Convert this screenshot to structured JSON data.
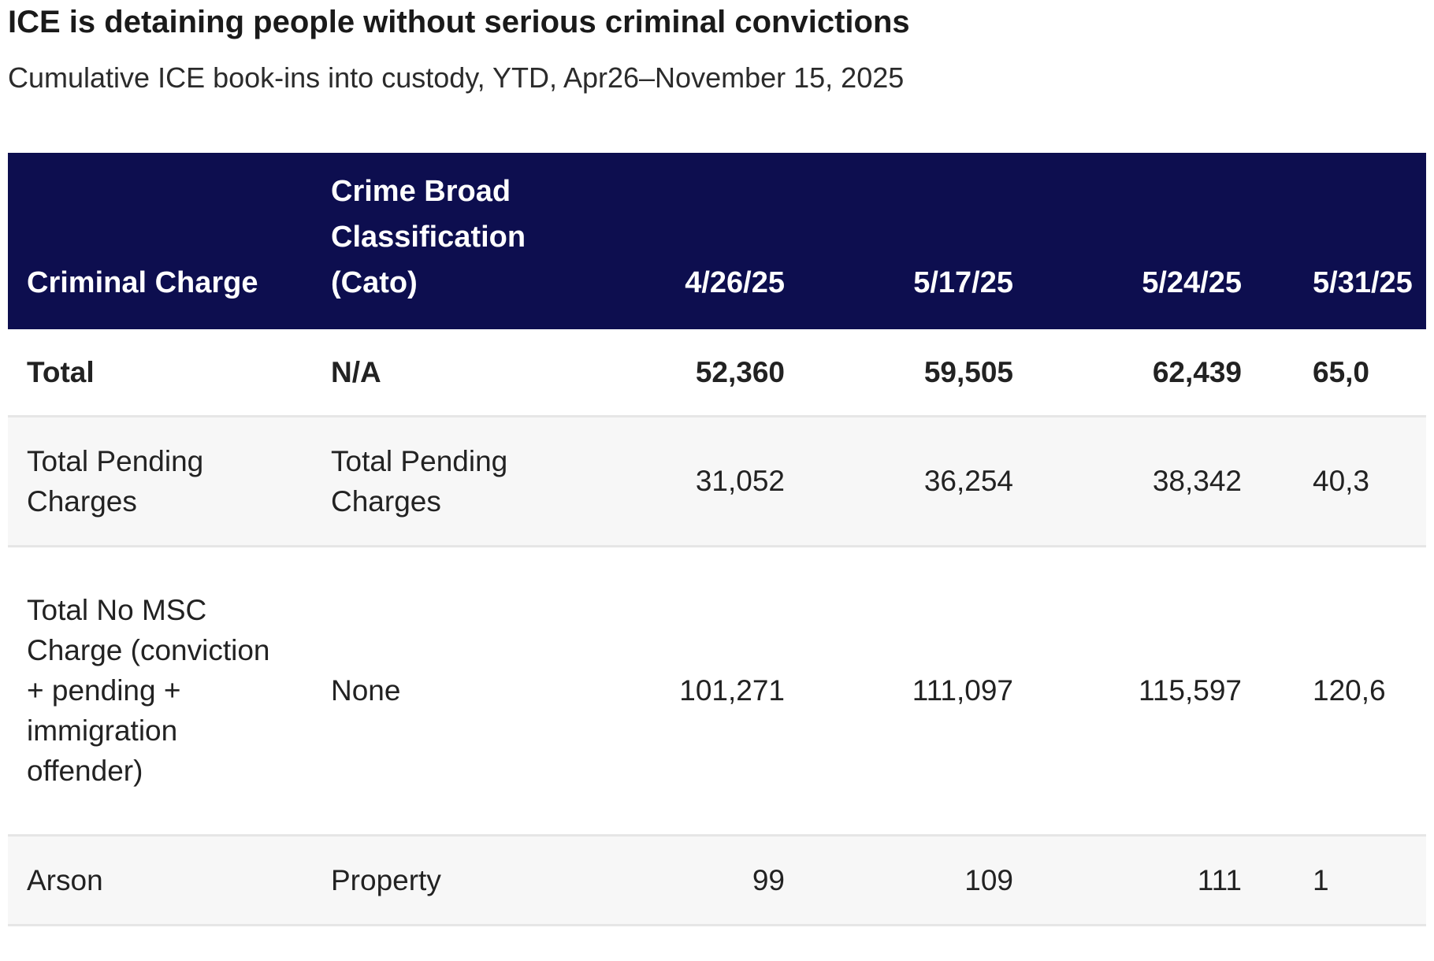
{
  "title": "ICE is detaining people without serious criminal convictions",
  "subtitle": "Cumulative ICE book-ins into custody, YTD, Apr26–November 15, 2025",
  "chart_data": {
    "type": "table",
    "title": "ICE is detaining people without serious criminal convictions",
    "subtitle": "Cumulative ICE book-ins into custody, YTD, Apr26–November 15, 2025",
    "columns": {
      "charge": "Criminal Charge",
      "classification": "Crime Broad Classification (Cato)",
      "dates": [
        "4/26/25",
        "5/17/25",
        "5/24/25",
        "5/31/25"
      ]
    },
    "rows": [
      {
        "charge": "Total",
        "classification": "N/A",
        "values": [
          "52,360",
          "59,505",
          "62,439",
          "65,0"
        ],
        "bold": true
      },
      {
        "charge": "Total Pending Charges",
        "classification": "Total Pending Charges",
        "values": [
          "31,052",
          "36,254",
          "38,342",
          "40,3"
        ]
      },
      {
        "charge": "Total No MSC Charge (conviction + pending + immigration offender)",
        "classification": "None",
        "values": [
          "101,271",
          "111,097",
          "115,597",
          "120,6"
        ]
      },
      {
        "charge": "Arson",
        "classification": "Property",
        "values": [
          "99",
          "109",
          "111",
          "1"
        ]
      }
    ]
  },
  "colors": {
    "header_background": "#0d0e4f",
    "header_text": "#ffffff",
    "row_stripe": "#f7f7f7",
    "divider": "#e6e6e6"
  }
}
